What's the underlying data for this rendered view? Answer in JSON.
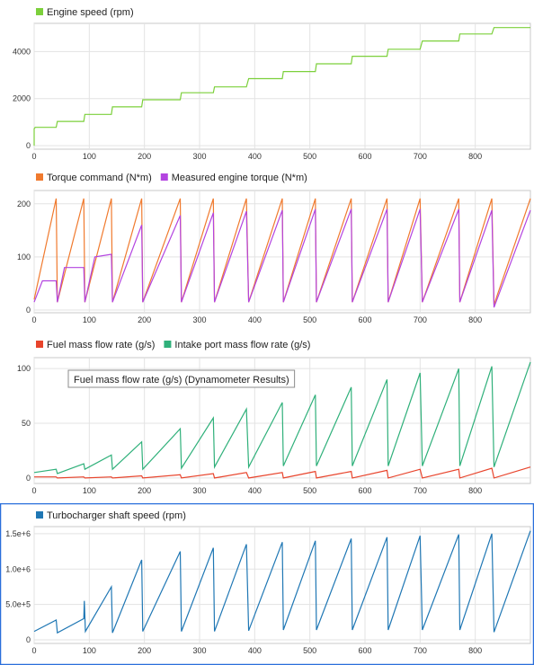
{
  "chart_data": [
    {
      "type": "line",
      "legend": [
        {
          "label": "Engine speed (rpm)",
          "color": "#7cd03b"
        }
      ],
      "xlim": [
        0,
        900
      ],
      "ylim": [
        -150,
        5200
      ],
      "x_ticks": [
        "0",
        "100",
        "200",
        "300",
        "400",
        "500",
        "600",
        "700",
        "800"
      ],
      "y_ticks": [
        {
          "v": 0,
          "label": "0"
        },
        {
          "v": 2000,
          "label": "2000"
        },
        {
          "v": 4000,
          "label": "4000"
        }
      ],
      "grid": true,
      "series": [
        {
          "name": "Engine speed (rpm)",
          "color": "#7cd03b",
          "x": [
            0,
            0,
            0,
            2,
            40,
            42,
            90,
            92,
            140,
            142,
            195,
            197,
            265,
            267,
            325,
            327,
            385,
            389,
            450,
            452,
            510,
            512,
            575,
            577,
            640,
            642,
            700,
            704,
            770,
            772,
            830,
            834,
            900
          ],
          "y": [
            0,
            720,
            720,
            780,
            780,
            1030,
            1030,
            1330,
            1330,
            1650,
            1650,
            1950,
            1950,
            2250,
            2250,
            2500,
            2500,
            2850,
            2850,
            3150,
            3150,
            3480,
            3480,
            3800,
            3800,
            4100,
            4100,
            4450,
            4450,
            4750,
            4750,
            5020,
            5020
          ]
        }
      ]
    },
    {
      "type": "line",
      "legend": [
        {
          "label": "Torque command (N*m)",
          "color": "#f07a2e"
        },
        {
          "label": "Measured engine torque (N*m)",
          "color": "#b344e0"
        }
      ],
      "xlim": [
        0,
        900
      ],
      "ylim": [
        -5,
        225
      ],
      "x_ticks": [
        "0",
        "100",
        "200",
        "300",
        "400",
        "500",
        "600",
        "700",
        "800"
      ],
      "y_ticks": [
        {
          "v": 0,
          "label": "0"
        },
        {
          "v": 100,
          "label": "100"
        },
        {
          "v": 200,
          "label": "200"
        }
      ],
      "grid": true,
      "series": [
        {
          "name": "Torque command (N*m)",
          "color": "#f07a2e",
          "x": [
            0,
            40,
            42,
            90,
            92,
            140,
            142,
            195,
            197,
            265,
            267,
            325,
            327,
            385,
            389,
            450,
            452,
            510,
            512,
            575,
            577,
            640,
            642,
            700,
            704,
            770,
            772,
            830,
            834,
            900
          ],
          "y": [
            20,
            210,
            15,
            210,
            15,
            210,
            15,
            210,
            15,
            210,
            15,
            210,
            15,
            210,
            15,
            210,
            15,
            210,
            15,
            210,
            15,
            210,
            15,
            210,
            15,
            210,
            15,
            210,
            10,
            210
          ]
        },
        {
          "name": "Measured engine torque (N*m)",
          "color": "#b344e0",
          "x": [
            0,
            15,
            40,
            42,
            55,
            90,
            92,
            110,
            140,
            142,
            195,
            197,
            265,
            267,
            325,
            327,
            385,
            389,
            450,
            452,
            510,
            512,
            575,
            577,
            640,
            642,
            700,
            704,
            770,
            772,
            830,
            834,
            900
          ],
          "y": [
            15,
            55,
            55,
            15,
            80,
            80,
            15,
            100,
            105,
            15,
            160,
            15,
            178,
            15,
            183,
            15,
            186,
            15,
            188,
            15,
            190,
            15,
            190,
            15,
            190,
            15,
            190,
            15,
            190,
            15,
            188,
            5,
            188
          ]
        }
      ]
    },
    {
      "type": "line",
      "legend": [
        {
          "label": "Fuel mass flow rate (g/s)",
          "color": "#e8442c"
        },
        {
          "label": "Intake port mass flow rate (g/s)",
          "color": "#2fb07a"
        }
      ],
      "xlim": [
        0,
        900
      ],
      "ylim": [
        -5,
        110
      ],
      "x_ticks": [
        "0",
        "100",
        "200",
        "300",
        "400",
        "500",
        "600",
        "700",
        "800"
      ],
      "y_ticks": [
        {
          "v": 0,
          "label": "0"
        },
        {
          "v": 50,
          "label": "50"
        },
        {
          "v": 100,
          "label": "100"
        }
      ],
      "grid": true,
      "annotation": "Fuel mass flow rate (g/s) (Dynamometer Results)",
      "series": [
        {
          "name": "Fuel mass flow rate (g/s)",
          "color": "#e8442c",
          "x": [
            0,
            40,
            42,
            90,
            92,
            140,
            142,
            195,
            197,
            265,
            267,
            325,
            327,
            385,
            389,
            450,
            452,
            510,
            512,
            575,
            577,
            640,
            642,
            700,
            704,
            770,
            772,
            830,
            834,
            900
          ],
          "y": [
            1,
            1,
            0,
            1,
            0,
            1,
            0,
            2,
            0,
            3,
            0,
            4,
            0,
            5,
            0,
            5,
            0,
            6,
            0,
            6,
            0,
            7,
            0,
            8,
            0,
            8,
            0,
            9,
            0,
            10
          ]
        },
        {
          "name": "Intake port mass flow rate (g/s)",
          "color": "#2fb07a",
          "x": [
            0,
            40,
            42,
            90,
            92,
            140,
            142,
            195,
            197,
            265,
            267,
            325,
            327,
            385,
            389,
            450,
            452,
            510,
            512,
            575,
            577,
            640,
            642,
            700,
            704,
            770,
            772,
            830,
            834,
            900
          ],
          "y": [
            5,
            8,
            4,
            13,
            8,
            21,
            8,
            33,
            8,
            45,
            9,
            55,
            10,
            63,
            10,
            69,
            11,
            76,
            11,
            83,
            11,
            90,
            11,
            96,
            11,
            100,
            11,
            102,
            10,
            106
          ]
        }
      ]
    },
    {
      "type": "line",
      "legend": [
        {
          "label": "Turbocharger shaft speed (rpm)",
          "color": "#1f77b4"
        }
      ],
      "xlim": [
        0,
        900
      ],
      "ylim": [
        -50000,
        1600000
      ],
      "x_ticks": [
        "0",
        "100",
        "200",
        "300",
        "400",
        "500",
        "600",
        "700",
        "800"
      ],
      "y_ticks": [
        {
          "v": 0,
          "label": "0"
        },
        {
          "v": 500000,
          "label": "5.0e+5"
        },
        {
          "v": 1000000,
          "label": "1.0e+6"
        },
        {
          "v": 1500000,
          "label": "1.5e+6"
        }
      ],
      "grid": true,
      "series": [
        {
          "name": "Turbocharger shaft speed (rpm)",
          "color": "#1f77b4",
          "x": [
            0,
            40,
            42,
            90,
            91,
            93,
            140,
            142,
            195,
            197,
            265,
            267,
            325,
            327,
            385,
            389,
            450,
            452,
            510,
            512,
            575,
            577,
            640,
            642,
            700,
            704,
            770,
            772,
            830,
            834,
            900
          ],
          "y": [
            120000,
            280000,
            100000,
            300000,
            550000,
            120000,
            750000,
            100000,
            1130000,
            120000,
            1250000,
            120000,
            1300000,
            120000,
            1350000,
            130000,
            1380000,
            140000,
            1400000,
            140000,
            1430000,
            140000,
            1450000,
            140000,
            1470000,
            140000,
            1490000,
            140000,
            1500000,
            110000,
            1540000
          ]
        }
      ]
    }
  ]
}
